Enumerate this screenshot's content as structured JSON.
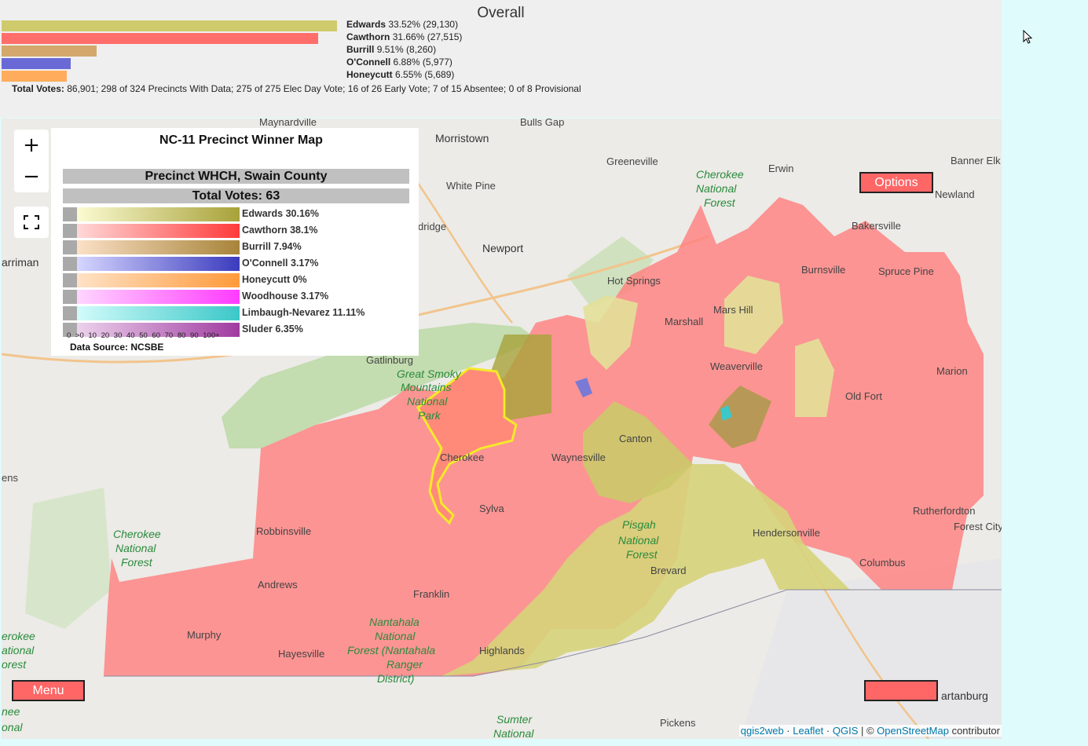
{
  "overall": {
    "title": "Overall",
    "candidates": [
      {
        "name": "Edwards",
        "stats": "33.52% (29,130)",
        "share": 33.52,
        "color": "#cfcb6d"
      },
      {
        "name": "Cawthorn",
        "stats": "31.66% (27,515)",
        "share": 31.66,
        "color": "#ff6e6b"
      },
      {
        "name": "Burrill",
        "stats": "9.51% (8,260)",
        "share": 9.51,
        "color": "#d4a86c"
      },
      {
        "name": "O'Connell",
        "stats": "6.88% (5,977)",
        "share": 6.88,
        "color": "#6a6ad6"
      },
      {
        "name": "Honeycutt",
        "stats": "6.55% (5,689)",
        "share": 6.55,
        "color": "#ffad5c"
      }
    ],
    "total_label": "Total Votes:",
    "total_text": "86,901; 298 of 324 Precincts With Data; 275 of 275 Elec Day Vote; 16 of 26 Early Vote; 7 of 15 Absentee; 0 of 8 Provisional"
  },
  "map": {
    "zoom_in": "+",
    "zoom_out": "−",
    "options_label": "Options",
    "menu_label": "Menu",
    "blank_button_label": "",
    "attribution": {
      "qgis2web": "qgis2web",
      "sep1": " · ",
      "leaflet": "Leaflet",
      "sep2": " · ",
      "qgis": "QGIS",
      "sep3": " | © ",
      "osm": "OpenStreetMap",
      "suffix": " contributor"
    },
    "place_labels": [
      "Maynardville",
      "Bulls Gap",
      "Morristown",
      "Greeneville",
      "Erwin",
      "Banner Elk",
      "White Pine",
      "Cherokee",
      "National",
      "Forest",
      "Newland",
      "Bakersville",
      "Newport",
      "Spruce Pine",
      "arriman",
      "Hot Springs",
      "Burnsville",
      "Marshall",
      "Mars Hill",
      "Gatlinburg",
      "Great Smoky",
      "Mountains",
      "National",
      "Park",
      "Weaverville",
      "Old Fort",
      "Canton",
      "Cherokee",
      "Sylva",
      "Waynesville",
      "ens",
      "Cherokee",
      "National",
      "Forest",
      "Robbinsville",
      "Pisgah",
      "National",
      "Forest",
      "Hendersonville",
      "Rutherfordton",
      "Forest City",
      "Andrews",
      "Brevard",
      "Columbus",
      "Franklin",
      "Nantahala",
      "National",
      "Forest (Nantahala",
      "Ranger",
      "District)",
      "Murphy",
      "Hayesville",
      "Highlands",
      "Pickens",
      "Sumter",
      "National",
      "artanburg",
      "erokee",
      "ational",
      "orest",
      "nee",
      "onal",
      "dridge",
      "Marion"
    ],
    "legend": {
      "title": "NC-11 Precinct Winner Map",
      "precinct": "Precinct WHCH, Swain County",
      "total_votes": "Total Votes: 63",
      "rows": [
        {
          "label": "Edwards 30.16%",
          "color_light": "#fbfbd2",
          "color_dark": "#a8a23a"
        },
        {
          "label": "Cawthorn 38.1%",
          "color_light": "#ffd8d8",
          "color_dark": "#ff3b3b"
        },
        {
          "label": "Burrill 7.94%",
          "color_light": "#fbe0c6",
          "color_dark": "#a8843a"
        },
        {
          "label": "O'Connell 3.17%",
          "color_light": "#d6d6ff",
          "color_dark": "#3b3bbe"
        },
        {
          "label": "Honeycutt 0%",
          "color_light": "#ffe2c6",
          "color_dark": "#ff9a3b"
        },
        {
          "label": "Woodhouse 3.17%",
          "color_light": "#ffd6ff",
          "color_dark": "#ff3bff"
        },
        {
          "label": "Limbaugh-Nevarez 11.11%",
          "color_light": "#d2fbfb",
          "color_dark": "#3bc8c8"
        },
        {
          "label": "Sluder 6.35%",
          "color_light": "#ecd2ec",
          "color_dark": "#a03ba0"
        }
      ],
      "scale": "0 >0 10 20 30 40 50 60 70 80 90 100+",
      "source": "Data Source: NCSBE"
    }
  }
}
